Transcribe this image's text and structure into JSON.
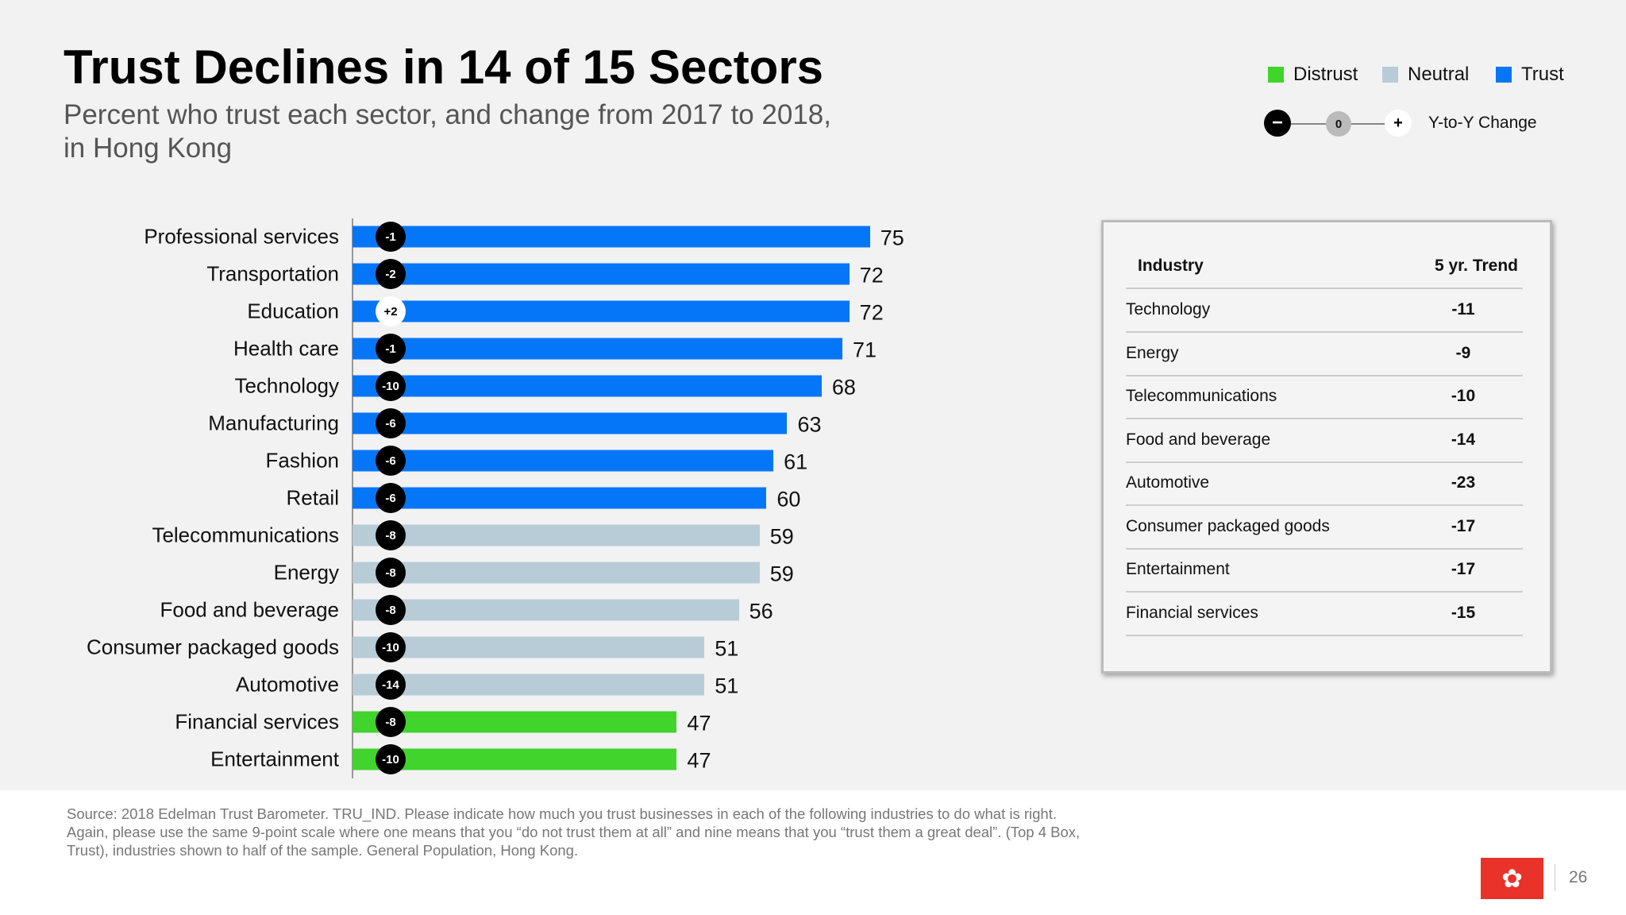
{
  "title": "Trust Declines in 14 of 15 Sectors",
  "subtitle": "Percent who trust each sector, and change from 2017 to 2018, in Hong Kong",
  "legend": {
    "items": [
      {
        "label": "Distrust",
        "color": "#40d42c"
      },
      {
        "label": "Neutral",
        "color": "#b8ccd8"
      },
      {
        "label": "Trust",
        "color": "#0576f7"
      }
    ],
    "change": {
      "minus": "−",
      "zero": "0",
      "plus": "+",
      "label": "Y-to-Y Change"
    }
  },
  "chart_data": {
    "type": "bar",
    "orientation": "horizontal",
    "xlim": [
      0,
      100
    ],
    "categories": [
      "Professional services",
      "Transportation",
      "Education",
      "Health care",
      "Technology",
      "Manufacturing",
      "Fashion",
      "Retail",
      "Telecommunications",
      "Energy",
      "Food and beverage",
      "Consumer packaged goods",
      "Automotive",
      "Financial services",
      "Entertainment"
    ],
    "values": [
      75,
      72,
      72,
      71,
      68,
      63,
      61,
      60,
      59,
      59,
      56,
      51,
      51,
      47,
      47
    ],
    "levels": [
      "Trust",
      "Trust",
      "Trust",
      "Trust",
      "Trust",
      "Trust",
      "Trust",
      "Trust",
      "Neutral",
      "Neutral",
      "Neutral",
      "Neutral",
      "Neutral",
      "Distrust",
      "Distrust"
    ],
    "changes": [
      "-1",
      "-2",
      "+2",
      "-1",
      "-10",
      "-6",
      "-6",
      "-6",
      "-8",
      "-8",
      "-8",
      "-10",
      "-14",
      "-8",
      "-10"
    ]
  },
  "table": {
    "headers": [
      "Industry",
      "5 yr. Trend"
    ],
    "rows": [
      [
        "Technology",
        "-11"
      ],
      [
        "Energy",
        "-9"
      ],
      [
        "Telecommunications",
        "-10"
      ],
      [
        "Food and beverage",
        "-14"
      ],
      [
        "Automotive",
        "-23"
      ],
      [
        "Consumer packaged goods",
        "-17"
      ],
      [
        "Entertainment",
        "-17"
      ],
      [
        "Financial services",
        "-15"
      ]
    ]
  },
  "source": "Source: 2018 Edelman Trust Barometer. TRU_IND. Please indicate how much you trust businesses in each of the following industries to do what is right. Again, please use the same 9-point scale where one means that you “do not trust them at all” and nine means that you “trust them a great deal”. (Top 4 Box, Trust), industries shown to half of the sample. General Population, Hong Kong.",
  "page_number": "26",
  "flag_icon": "hong-kong-flag"
}
